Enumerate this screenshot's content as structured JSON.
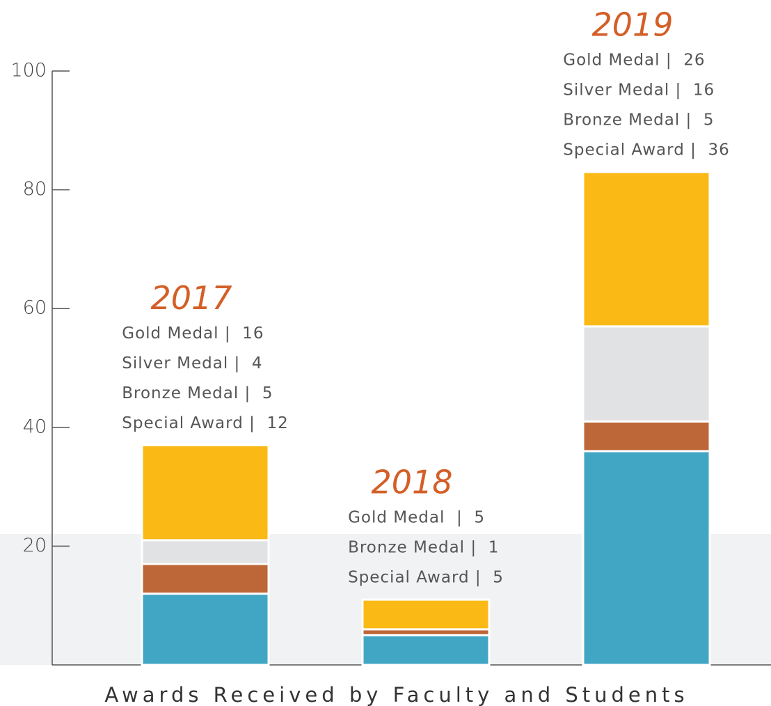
{
  "chart_data": {
    "type": "stacked_bar",
    "title": "Awards Received by Faculty and Students",
    "categories": [
      "2017",
      "2018",
      "2019"
    ],
    "series": [
      {
        "name": "Gold Medal",
        "color": "#fbb916",
        "values": [
          16,
          5,
          26
        ],
        "value_labels": [
          "Gold Medal |  16",
          "Gold Medal  |  5",
          "Gold Medal |  26"
        ]
      },
      {
        "name": "Silver Medal",
        "color": "#e0e2e3",
        "values": [
          4,
          null,
          16
        ],
        "value_labels": [
          "Silver Medal |  4",
          null,
          "Silver Medal |  16"
        ]
      },
      {
        "name": "Bronze Medal",
        "color": "#bd6638",
        "values": [
          5,
          1,
          5
        ],
        "value_labels": [
          "Bronze Medal |  5",
          "Bronze Medal |  1",
          "Bronze Medal |  5"
        ]
      },
      {
        "name": "Special Award",
        "color": "#41a6c4",
        "values": [
          12,
          5,
          36
        ],
        "value_labels": [
          "Special Award |  12",
          "Special Award |  5",
          "Special Award |  36"
        ]
      }
    ],
    "ylim": [
      0,
      100
    ],
    "yticks": [
      20,
      40,
      60,
      80,
      100
    ],
    "grid": false
  }
}
